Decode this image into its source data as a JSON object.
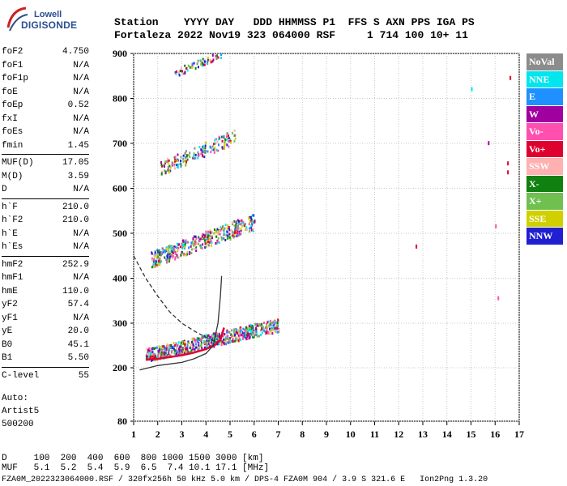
{
  "logo": {
    "line1": "Lowell",
    "line2": "DIGISONDE"
  },
  "header": {
    "labels": "Station    YYYY DAY   DDD HHMMSS P1  FFS S AXN PPS IGA PS",
    "values": "Fortaleza 2022 Nov19 323 064000 RSF     1 714 100 10+ 11"
  },
  "params": [
    {
      "name": "foF2",
      "value": "4.750"
    },
    {
      "name": "foF1",
      "value": "N/A"
    },
    {
      "name": "foF1p",
      "value": "N/A"
    },
    {
      "name": "foE",
      "value": "N/A"
    },
    {
      "name": "foEp",
      "value": "0.52"
    },
    {
      "name": "fxI",
      "value": "N/A"
    },
    {
      "name": "foEs",
      "value": "N/A"
    },
    {
      "name": "fmin",
      "value": "1.45"
    },
    {
      "name": "MUF(D)",
      "value": "17.05"
    },
    {
      "name": "M(D)",
      "value": "3.59"
    },
    {
      "name": "D",
      "value": "N/A"
    },
    {
      "name": "h`F",
      "value": "210.0"
    },
    {
      "name": "h`F2",
      "value": "210.0"
    },
    {
      "name": "h`E",
      "value": "N/A"
    },
    {
      "name": "h`Es",
      "value": "N/A"
    },
    {
      "name": "hmF2",
      "value": "252.9"
    },
    {
      "name": "hmF1",
      "value": "N/A"
    },
    {
      "name": "hmE",
      "value": "110.0"
    },
    {
      "name": "yF2",
      "value": "57.4"
    },
    {
      "name": "yF1",
      "value": "N/A"
    },
    {
      "name": "yE",
      "value": "20.0"
    },
    {
      "name": "B0",
      "value": "45.1"
    },
    {
      "name": "B1",
      "value": "5.50"
    },
    {
      "name": "C-level",
      "value": "55"
    }
  ],
  "auto": [
    "Auto:",
    "Artist5",
    "500200"
  ],
  "legend": [
    {
      "label": "NoVal",
      "color": "#8c8c8c"
    },
    {
      "label": "NNE",
      "color": "#00e5ee"
    },
    {
      "label": "E",
      "color": "#1e90ff"
    },
    {
      "label": "W",
      "color": "#a000a0"
    },
    {
      "label": "Vo-",
      "color": "#ff50b0"
    },
    {
      "label": "Vo+",
      "color": "#e00030"
    },
    {
      "label": "SSW",
      "color": "#ffb0b0"
    },
    {
      "label": "X-",
      "color": "#108010"
    },
    {
      "label": "X+",
      "color": "#70c050"
    },
    {
      "label": "SSE",
      "color": "#d0d000"
    },
    {
      "label": "NNW",
      "color": "#2020d0"
    }
  ],
  "bottom": {
    "d_row": "D     100  200  400  600  800 1000 1500 3000 [km]",
    "muf_row": "MUF   5.1  5.2  5.4  5.9  6.5  7.4 10.1 17.1 [MHz]",
    "footer": "FZA0M_2022323064000.RSF / 320fx256h 50 kHz 5.0 km / DPS-4 FZA0M 904 / 3.9 S 321.6 E   Ion2Png 1.3.20"
  },
  "chart_data": {
    "type": "scatter",
    "title": "",
    "xlabel": "",
    "ylabel": "",
    "xlim": [
      1,
      17
    ],
    "ylim": [
      80,
      900
    ],
    "x_ticks": [
      1,
      2,
      3,
      4,
      5,
      6,
      7,
      8,
      9,
      10,
      11,
      12,
      13,
      14,
      15,
      16,
      17
    ],
    "y_ticks": [
      80,
      200,
      300,
      400,
      500,
      600,
      700,
      800,
      900
    ],
    "grid": true,
    "traces": [
      {
        "name": "O-trace F2",
        "color": "#e00030",
        "points": [
          [
            1.5,
            218
          ],
          [
            2,
            220
          ],
          [
            2.5,
            224
          ],
          [
            3,
            228
          ],
          [
            3.5,
            234
          ],
          [
            4,
            242
          ],
          [
            4.4,
            252
          ],
          [
            4.6,
            262
          ],
          [
            4.75,
            290
          ]
        ]
      },
      {
        "name": "profile",
        "style": "solid",
        "points": [
          [
            1.25,
            195
          ],
          [
            2,
            205
          ],
          [
            3,
            212
          ],
          [
            3.5,
            220
          ],
          [
            4,
            232
          ],
          [
            4.3,
            250
          ],
          [
            4.5,
            300
          ],
          [
            4.6,
            360
          ],
          [
            4.65,
            405
          ]
        ]
      },
      {
        "name": "profile-ext",
        "style": "dashed",
        "points": [
          [
            1,
            450
          ],
          [
            1.5,
            400
          ],
          [
            2,
            360
          ],
          [
            2.5,
            325
          ],
          [
            3,
            300
          ],
          [
            3.5,
            283
          ],
          [
            4,
            268
          ],
          [
            4.5,
            256
          ]
        ]
      }
    ],
    "echo_bands": [
      {
        "label": "1st hop",
        "fstart": 1.5,
        "fend": 7,
        "hstart": 215,
        "hend": 300
      },
      {
        "label": "2nd hop",
        "fstart": 1.7,
        "fend": 6,
        "hstart": 425,
        "hend": 530
      },
      {
        "label": "3rd hop",
        "fstart": 2.1,
        "fend": 5.2,
        "hstart": 630,
        "hend": 720
      },
      {
        "label": "4th hop",
        "fstart": 2.7,
        "fend": 4.7,
        "hstart": 850,
        "hend": 900
      }
    ]
  }
}
